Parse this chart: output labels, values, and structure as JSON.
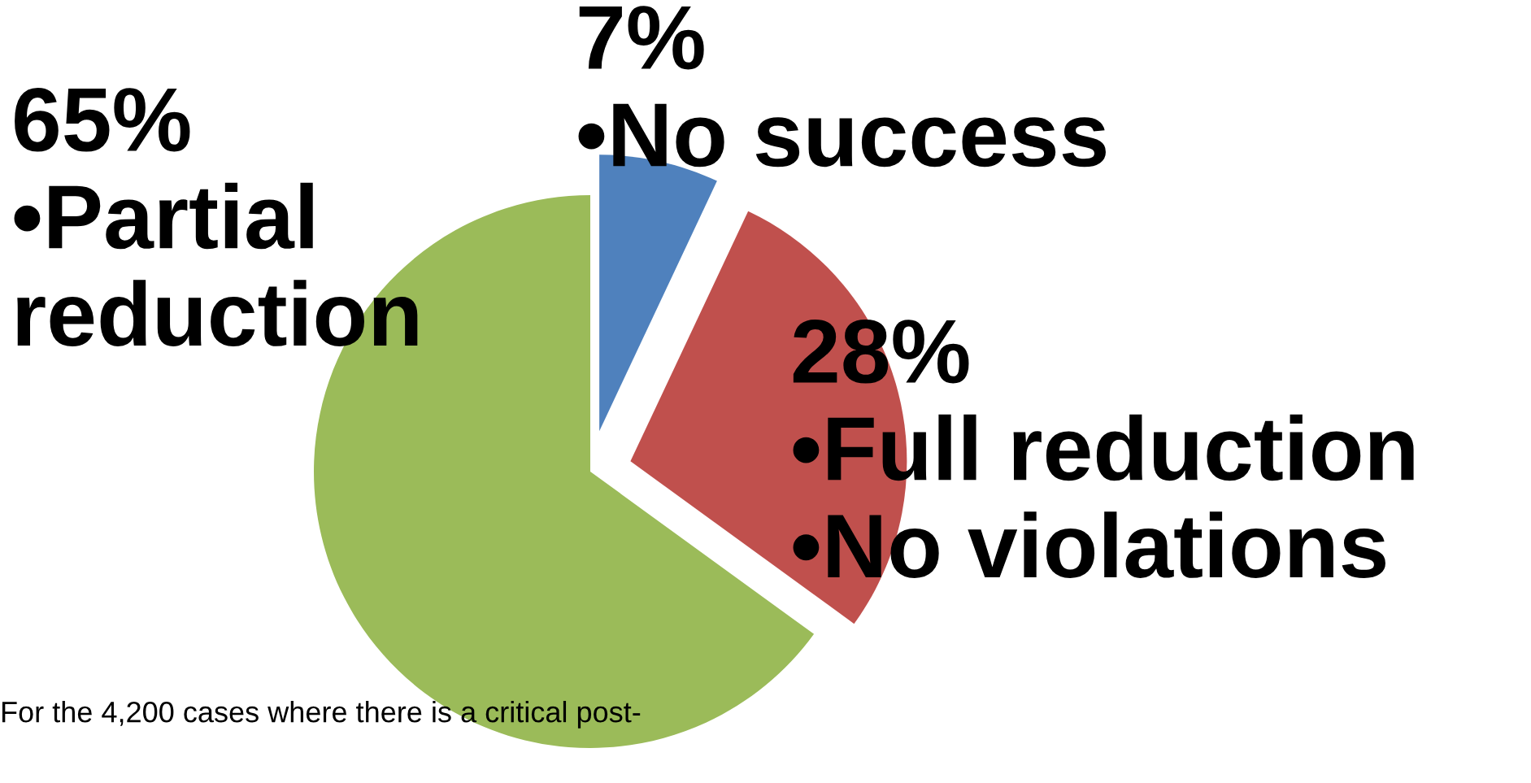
{
  "chart_data": {
    "type": "pie",
    "categories": [
      "•No success",
      "•Full reduction\n•No violations",
      "•Partial\nreduction"
    ],
    "values": [
      7,
      28,
      65
    ],
    "value_labels": [
      "7%",
      "28%",
      "65%"
    ],
    "colors": [
      "#4f81bd",
      "#c0504d",
      "#9bbb59"
    ],
    "legend": false,
    "annotations": [
      "For the 4,200 cases where there is a critical post-"
    ]
  }
}
